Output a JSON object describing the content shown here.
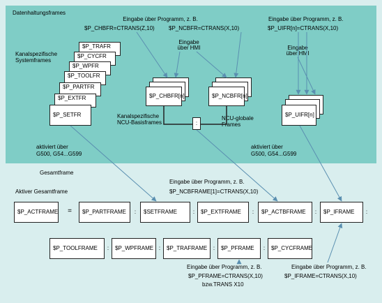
{
  "top": {
    "title": "Datenhaltungsframes",
    "input_prog_label": "Eingabe über Programm, z. B.",
    "chbfr_cmd": "$P_CHBFR=CTRANS(Z,10)",
    "ncbfr_cmd": "$P_NCBFR=CTRANS(X,10)",
    "uifr_prog_label": "Eingabe über Programm, z. B.",
    "uifr_cmd": "$P_UIFR[n]=CTRANS(X,10)",
    "hmi_label_1": "Eingabe",
    "hmi_label_2": "über HMI",
    "hmi2_label_1": "Eingabe",
    "hmi2_label_2": "über HMI",
    "kanal_sys_1": "Kanalspezifische",
    "kanal_sys_2": "Systemframes",
    "stack": [
      "$P_TRAFR",
      "$P_CYCFR",
      "$P_WPFR",
      "$P_TOOLFR",
      "$P_PARTFR",
      "$P_EXTFR",
      "$P_SETFR"
    ],
    "chbfr_box": "$P_CHBFR[n]",
    "ncbfr_box": "$P_NCBFR[n]",
    "uifr_box": "$P_UIFR[n]",
    "colon": ":",
    "kanal_basis_1": "Kanalspezifische",
    "kanal_basis_2": "NCU-Basisframes",
    "ncu_global_1": "NCU-globale",
    "ncu_global_2": "Frames",
    "aktiviert_left_1": "aktiviert über",
    "aktiviert_left_2": "G500, G54...G599",
    "aktiviert_right_1": "aktiviert über",
    "aktiviert_right_2": "G500, G54...G599"
  },
  "bottom": {
    "gesamtframe": "Gesamtframe",
    "ncbframe_label": "Eingabe über Programm, z. B.",
    "ncbframe_cmd": "$P_NCBFRAME[1]=CTRANS(X,10)",
    "aktiver": "Aktiver Gesamtframe",
    "row1": [
      "$P_ACTFRAME",
      "=",
      "$P_PARTFRAME",
      ":",
      "$SETFRAME",
      ":",
      "$P_EXTFRAME",
      ":",
      "$P_ACTBFRAME",
      ":",
      "$P_IFRAME",
      ":"
    ],
    "row2": [
      "$P_TOOLFRAME",
      ":",
      "$P_WPFRAME",
      ":",
      "$P_TRAFRAME",
      ":",
      "$P_PFRAME",
      ":",
      "$P_CYCFRAME"
    ],
    "pframe_label": "Eingabe über Programm, z. B.",
    "pframe_cmd": "$P_PFRAME=CTRANS(X,10)",
    "pframe_alt": "bzw.TRANS X10",
    "iframe_label": "Eingabe über Programm, z. B.",
    "iframe_cmd": "$P_IFRAME=CTRANS(X,10)"
  },
  "colors": {
    "panel": "#d9eeee",
    "teal": "#7fcdc6",
    "arrow": "#5a8fb0",
    "line": "#222222"
  }
}
